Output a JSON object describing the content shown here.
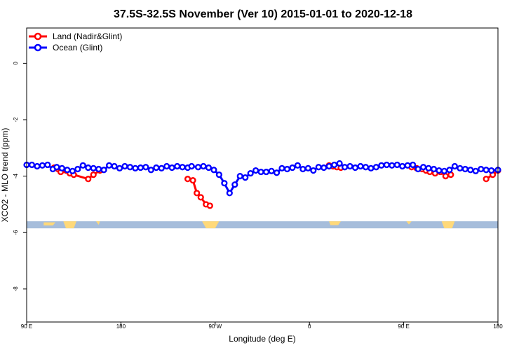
{
  "chart_data": {
    "type": "line",
    "title": "37.5S-32.5S November (Ver 10)   2015-01-01 to 2020-12-18",
    "xlabel": "Longitude (deg E)",
    "ylabel": "XCO2 - MLO trend (ppm)",
    "xlim": [
      90,
      450
    ],
    "ylim": [
      -9.17,
      1.25
    ],
    "x_ticks": [
      {
        "value": 90,
        "label": "90 E"
      },
      {
        "value": 162,
        "label": "180"
      },
      {
        "value": 234,
        "label": "90 W"
      },
      {
        "value": 306,
        "label": "0"
      },
      {
        "value": 378,
        "label": "90 E"
      },
      {
        "value": 450,
        "label": "180"
      }
    ],
    "y_ticks": [
      {
        "value": 0,
        "label": "0"
      },
      {
        "value": -2,
        "label": "-2"
      },
      {
        "value": -4,
        "label": "-4"
      },
      {
        "value": -6,
        "label": "-6"
      },
      {
        "value": -8,
        "label": "-8"
      }
    ],
    "legend": {
      "position": "top-left"
    },
    "map_strip": {
      "y_range": [
        -5.85,
        -5.6
      ],
      "ocean_color": "#a6bddb",
      "land_color": "#ffd97a"
    },
    "series": [
      {
        "name": "Land (Nadir&Glint)",
        "color": "#ff0000",
        "segments": [
          {
            "x": [
              111,
              114,
              116,
              120,
              123,
              126,
              137,
              141,
              146
            ],
            "y": [
              -3.7,
              -3.75,
              -3.85,
              -3.8,
              -3.9,
              -3.95,
              -4.1,
              -3.95,
              -3.8
            ]
          },
          {
            "x": [
              213,
              217,
              220,
              223,
              227,
              230
            ],
            "y": [
              -4.1,
              -4.15,
              -4.6,
              -4.75,
              -5.0,
              -5.05
            ]
          },
          {
            "x": [
              321,
              324,
              327,
              330
            ],
            "y": [
              -3.62,
              -3.65,
              -3.68,
              -3.7
            ]
          },
          {
            "x": [
              384,
              388,
              392,
              395,
              398,
              402,
              406,
              410,
              414
            ],
            "y": [
              -3.68,
              -3.72,
              -3.75,
              -3.8,
              -3.85,
              -3.9,
              -3.85,
              -4.0,
              -3.95
            ]
          },
          {
            "x": [
              441,
              446,
              450
            ],
            "y": [
              -4.1,
              -3.95,
              -3.8
            ]
          }
        ]
      },
      {
        "name": "Ocean (Glint)",
        "color": "#0000ff",
        "segments": [
          {
            "x": [
              90,
              94,
              98,
              102,
              106,
              110,
              113,
              117,
              121,
              125,
              129,
              133,
              137,
              141,
              145,
              149,
              153,
              157,
              161,
              165,
              169,
              173,
              177,
              181,
              185,
              189,
              193,
              197,
              201,
              205,
              209,
              213,
              216,
              221,
              225,
              229,
              233,
              237,
              241,
              245,
              249,
              253,
              257,
              261,
              265,
              269,
              273,
              277,
              281,
              285,
              289,
              293,
              297,
              301,
              305,
              309,
              313,
              317,
              321,
              325,
              329,
              333,
              337,
              341,
              345,
              349,
              353,
              357,
              361,
              365,
              369,
              373,
              377,
              381,
              385,
              389,
              393,
              397,
              401,
              405,
              409,
              413,
              417,
              421,
              425,
              429,
              433,
              437,
              441,
              445,
              450
            ],
            "y": [
              -3.6,
              -3.6,
              -3.65,
              -3.62,
              -3.6,
              -3.75,
              -3.68,
              -3.72,
              -3.78,
              -3.82,
              -3.75,
              -3.62,
              -3.7,
              -3.72,
              -3.75,
              -3.78,
              -3.62,
              -3.65,
              -3.72,
              -3.65,
              -3.68,
              -3.72,
              -3.7,
              -3.68,
              -3.78,
              -3.7,
              -3.72,
              -3.65,
              -3.7,
              -3.65,
              -3.68,
              -3.7,
              -3.65,
              -3.68,
              -3.65,
              -3.7,
              -3.78,
              -3.95,
              -4.25,
              -4.6,
              -4.3,
              -4.0,
              -4.05,
              -3.9,
              -3.8,
              -3.85,
              -3.85,
              -3.82,
              -3.88,
              -3.72,
              -3.75,
              -3.7,
              -3.62,
              -3.75,
              -3.72,
              -3.8,
              -3.68,
              -3.7,
              -3.65,
              -3.6,
              -3.55,
              -3.68,
              -3.65,
              -3.7,
              -3.65,
              -3.68,
              -3.72,
              -3.68,
              -3.62,
              -3.6,
              -3.62,
              -3.6,
              -3.65,
              -3.62,
              -3.6,
              -3.75,
              -3.68,
              -3.72,
              -3.75,
              -3.8,
              -3.82,
              -3.78,
              -3.65,
              -3.72,
              -3.75,
              -3.78,
              -3.82,
              -3.75,
              -3.78,
              -3.8,
              -3.78
            ]
          }
        ]
      }
    ]
  }
}
